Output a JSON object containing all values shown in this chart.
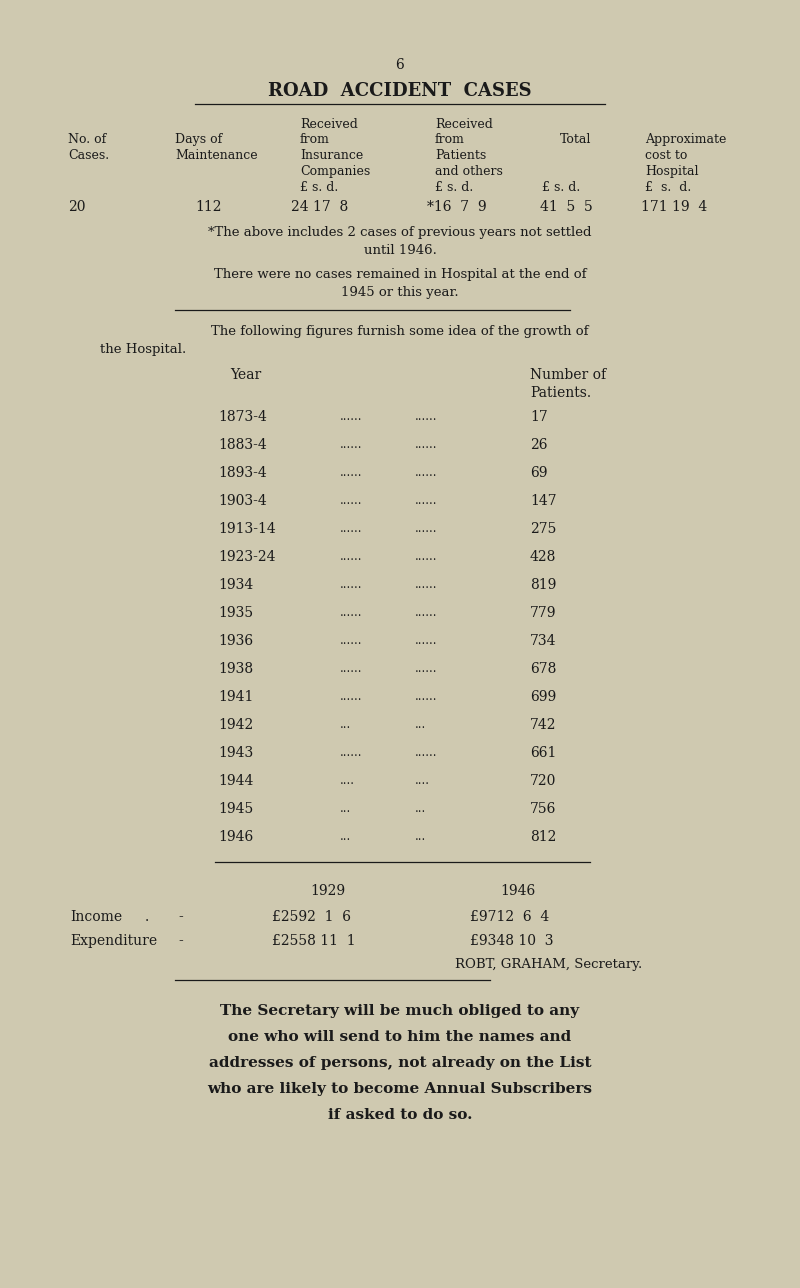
{
  "bg_color": "#cfc9b0",
  "text_color": "#1a1a1a",
  "page_number": "6",
  "title": "ROAD  ACCIDENT  CASES",
  "years": [
    "1873-4",
    "1883-4",
    "1893-4",
    "1903-4",
    "1913-14",
    "1923-24",
    "1934",
    "1935",
    "1936",
    "1938",
    "1941",
    "1942",
    "1943",
    "1944",
    "1945",
    "1946"
  ],
  "dots1": [
    "......",
    "......",
    "......",
    "......",
    "......",
    "......",
    "......",
    "......",
    "......",
    "......",
    "......",
    "...",
    "......",
    "....",
    "...",
    "..."
  ],
  "dots2": [
    "......",
    "......",
    "......",
    "......",
    "......",
    "......",
    "......",
    "......",
    "......",
    "......",
    "......",
    "...",
    "......",
    "....",
    "...",
    "..."
  ],
  "patients": [
    "17",
    "26",
    "69",
    "147",
    "275",
    "428",
    "819",
    "779",
    "734",
    "678",
    "699",
    "742",
    "661",
    "720",
    "756",
    "812"
  ]
}
